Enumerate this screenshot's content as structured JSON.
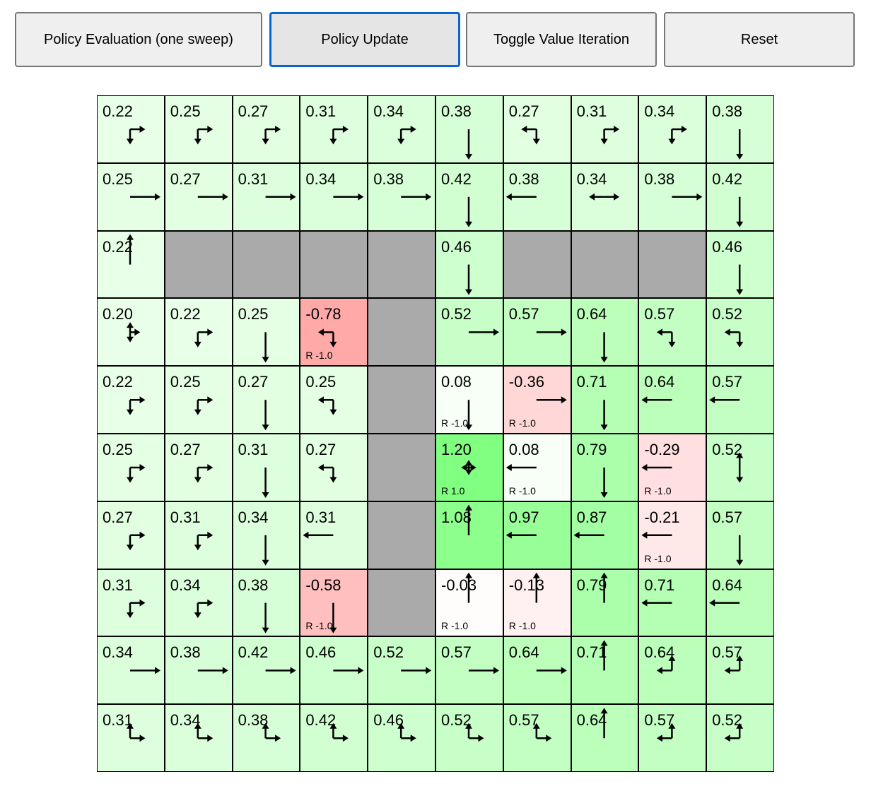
{
  "toolbar": {
    "buttons": [
      {
        "label": "Policy Evaluation (one sweep)"
      },
      {
        "label": "Policy Update"
      },
      {
        "label": "Toggle Value Iteration"
      },
      {
        "label": "Reset"
      }
    ]
  },
  "colors": {
    "wall": "#aaaaaa",
    "positive": "#80ff80",
    "negative": "#ffaaaa",
    "focus": "#0a64d6"
  },
  "grid": {
    "rows": [
      {
        "cells": [
          {
            "value": "0.22",
            "policy": "RD"
          },
          {
            "value": "0.25",
            "policy": "RD"
          },
          {
            "value": "0.27",
            "policy": "RD"
          },
          {
            "value": "0.31",
            "policy": "RD"
          },
          {
            "value": "0.34",
            "policy": "RD"
          },
          {
            "value": "0.38",
            "policy": "D"
          },
          {
            "value": "0.27",
            "policy": "LD"
          },
          {
            "value": "0.31",
            "policy": "RD"
          },
          {
            "value": "0.34",
            "policy": "RD"
          },
          {
            "value": "0.38",
            "policy": "D"
          }
        ]
      },
      {
        "cells": [
          {
            "value": "0.25",
            "policy": "R"
          },
          {
            "value": "0.27",
            "policy": "R"
          },
          {
            "value": "0.31",
            "policy": "R"
          },
          {
            "value": "0.34",
            "policy": "R"
          },
          {
            "value": "0.38",
            "policy": "R"
          },
          {
            "value": "0.42",
            "policy": "D"
          },
          {
            "value": "0.38",
            "policy": "L"
          },
          {
            "value": "0.34",
            "policy": "LR"
          },
          {
            "value": "0.38",
            "policy": "R"
          },
          {
            "value": "0.42",
            "policy": "D"
          }
        ]
      },
      {
        "cells": [
          {
            "value": "0.22",
            "policy": "U"
          },
          {
            "wall": true
          },
          {
            "wall": true
          },
          {
            "wall": true
          },
          {
            "wall": true
          },
          {
            "value": "0.46",
            "policy": "D"
          },
          {
            "wall": true
          },
          {
            "wall": true
          },
          {
            "wall": true
          },
          {
            "value": "0.46",
            "policy": "D"
          }
        ]
      },
      {
        "cells": [
          {
            "value": "0.20",
            "policy": "URD"
          },
          {
            "value": "0.22",
            "policy": "RD"
          },
          {
            "value": "0.25",
            "policy": "D"
          },
          {
            "value": "-0.78",
            "policy": "LD",
            "reward": "R -1.0"
          },
          {
            "wall": true
          },
          {
            "value": "0.52",
            "policy": "R"
          },
          {
            "value": "0.57",
            "policy": "R"
          },
          {
            "value": "0.64",
            "policy": "D"
          },
          {
            "value": "0.57",
            "policy": "LD"
          },
          {
            "value": "0.52",
            "policy": "LD"
          }
        ]
      },
      {
        "cells": [
          {
            "value": "0.22",
            "policy": "RD"
          },
          {
            "value": "0.25",
            "policy": "RD"
          },
          {
            "value": "0.27",
            "policy": "D"
          },
          {
            "value": "0.25",
            "policy": "LD"
          },
          {
            "wall": true
          },
          {
            "value": "0.08",
            "policy": "D",
            "reward": "R -1.0"
          },
          {
            "value": "-0.36",
            "policy": "R",
            "reward": "R -1.0"
          },
          {
            "value": "0.71",
            "policy": "D"
          },
          {
            "value": "0.64",
            "policy": "L"
          },
          {
            "value": "0.57",
            "policy": "L"
          }
        ]
      },
      {
        "cells": [
          {
            "value": "0.25",
            "policy": "RD"
          },
          {
            "value": "0.27",
            "policy": "RD"
          },
          {
            "value": "0.31",
            "policy": "D"
          },
          {
            "value": "0.27",
            "policy": "LD"
          },
          {
            "wall": true
          },
          {
            "value": "1.20",
            "policy": "LURD",
            "reward": "R 1.0"
          },
          {
            "value": "0.08",
            "policy": "L",
            "reward": "R -1.0"
          },
          {
            "value": "0.79",
            "policy": "D"
          },
          {
            "value": "-0.29",
            "policy": "L",
            "reward": "R -1.0"
          },
          {
            "value": "0.52",
            "policy": "UD"
          }
        ]
      },
      {
        "cells": [
          {
            "value": "0.27",
            "policy": "RD"
          },
          {
            "value": "0.31",
            "policy": "RD"
          },
          {
            "value": "0.34",
            "policy": "D"
          },
          {
            "value": "0.31",
            "policy": "L"
          },
          {
            "wall": true
          },
          {
            "value": "1.08",
            "policy": "U"
          },
          {
            "value": "0.97",
            "policy": "L"
          },
          {
            "value": "0.87",
            "policy": "L"
          },
          {
            "value": "-0.21",
            "policy": "L",
            "reward": "R -1.0"
          },
          {
            "value": "0.57",
            "policy": "D"
          }
        ]
      },
      {
        "cells": [
          {
            "value": "0.31",
            "policy": "RD"
          },
          {
            "value": "0.34",
            "policy": "RD"
          },
          {
            "value": "0.38",
            "policy": "D"
          },
          {
            "value": "-0.58",
            "policy": "D",
            "reward": "R -1.0"
          },
          {
            "wall": true
          },
          {
            "value": "-0.03",
            "policy": "U",
            "reward": "R -1.0"
          },
          {
            "value": "-0.13",
            "policy": "U",
            "reward": "R -1.0"
          },
          {
            "value": "0.79",
            "policy": "U"
          },
          {
            "value": "0.71",
            "policy": "L"
          },
          {
            "value": "0.64",
            "policy": "L"
          }
        ]
      },
      {
        "cells": [
          {
            "value": "0.34",
            "policy": "R"
          },
          {
            "value": "0.38",
            "policy": "R"
          },
          {
            "value": "0.42",
            "policy": "R"
          },
          {
            "value": "0.46",
            "policy": "R"
          },
          {
            "value": "0.52",
            "policy": "R"
          },
          {
            "value": "0.57",
            "policy": "R"
          },
          {
            "value": "0.64",
            "policy": "R"
          },
          {
            "value": "0.71",
            "policy": "U"
          },
          {
            "value": "0.64",
            "policy": "LU"
          },
          {
            "value": "0.57",
            "policy": "LU"
          }
        ]
      },
      {
        "cells": [
          {
            "value": "0.31",
            "policy": "UR"
          },
          {
            "value": "0.34",
            "policy": "UR"
          },
          {
            "value": "0.38",
            "policy": "UR"
          },
          {
            "value": "0.42",
            "policy": "UR"
          },
          {
            "value": "0.46",
            "policy": "UR"
          },
          {
            "value": "0.52",
            "policy": "UR"
          },
          {
            "value": "0.57",
            "policy": "UR"
          },
          {
            "value": "0.64",
            "policy": "U"
          },
          {
            "value": "0.57",
            "policy": "LU"
          },
          {
            "value": "0.52",
            "policy": "LU"
          }
        ]
      }
    ]
  }
}
